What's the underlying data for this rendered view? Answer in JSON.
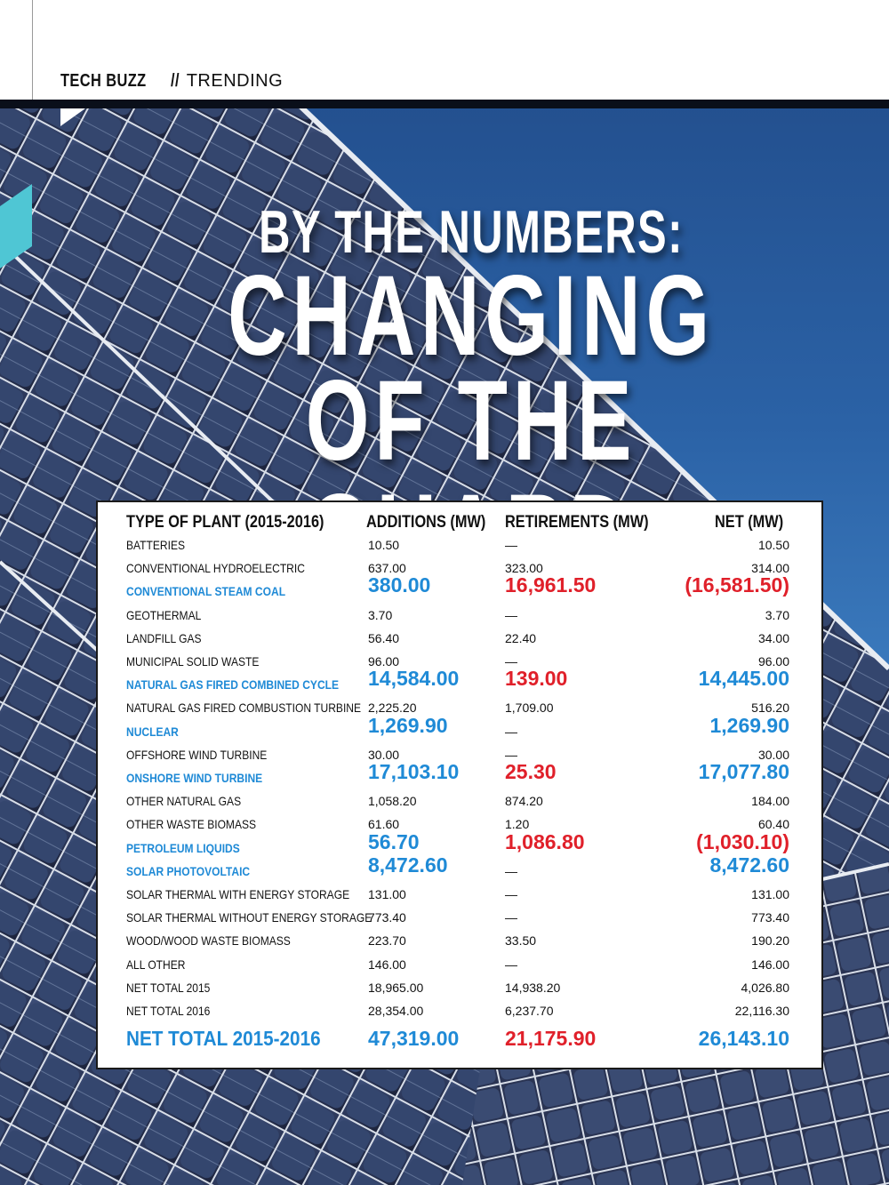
{
  "header": {
    "section": "TECH BUZZ",
    "separator": "//",
    "subsection": "TRENDING"
  },
  "title": {
    "line1": "BY THE NUMBERS:",
    "line2": "CHANGING",
    "line3": "OF THE GUARD"
  },
  "table": {
    "headers": {
      "type": "TYPE OF PLANT (2015-2016)",
      "additions": "ADDITIONS (MW)",
      "retirements": "RETIREMENTS (MW)",
      "net": "NET (MW)"
    },
    "rows": [
      {
        "type": "BATTERIES",
        "additions": "10.50",
        "retirements": "—",
        "net": "10.50",
        "highlight": false
      },
      {
        "type": "CONVENTIONAL HYDROELECTRIC",
        "additions": "637.00",
        "retirements": "323.00",
        "net": "314.00",
        "highlight": false
      },
      {
        "type": "CONVENTIONAL STEAM COAL",
        "additions": "380.00",
        "retirements": "16,961.50",
        "net": "(16,581.50)",
        "highlight": true,
        "net_color": "red"
      },
      {
        "type": "GEOTHERMAL",
        "additions": "3.70",
        "retirements": "—",
        "net": "3.70",
        "highlight": false
      },
      {
        "type": "LANDFILL GAS",
        "additions": "56.40",
        "retirements": "22.40",
        "net": "34.00",
        "highlight": false
      },
      {
        "type": "MUNICIPAL SOLID WASTE",
        "additions": "96.00",
        "retirements": "—",
        "net": "96.00",
        "highlight": false
      },
      {
        "type": "NATURAL GAS FIRED COMBINED CYCLE",
        "additions": "14,584.00",
        "retirements": "139.00",
        "net": "14,445.00",
        "highlight": true,
        "net_color": "blue"
      },
      {
        "type": "NATURAL GAS FIRED COMBUSTION TURBINE",
        "additions": "2,225.20",
        "retirements": "1,709.00",
        "net": "516.20",
        "highlight": false
      },
      {
        "type": "NUCLEAR",
        "additions": "1,269.90",
        "retirements": "—",
        "net": "1,269.90",
        "highlight": true,
        "net_color": "blue"
      },
      {
        "type": "OFFSHORE WIND TURBINE",
        "additions": "30.00",
        "retirements": "—",
        "net": "30.00",
        "highlight": false
      },
      {
        "type": "ONSHORE WIND TURBINE",
        "additions": "17,103.10",
        "retirements": "25.30",
        "net": "17,077.80",
        "highlight": true,
        "net_color": "blue"
      },
      {
        "type": "OTHER NATURAL GAS",
        "additions": "1,058.20",
        "retirements": "874.20",
        "net": "184.00",
        "highlight": false
      },
      {
        "type": "OTHER WASTE BIOMASS",
        "additions": "61.60",
        "retirements": "1.20",
        "net": "60.40",
        "highlight": false
      },
      {
        "type": "PETROLEUM LIQUIDS",
        "additions": "56.70",
        "retirements": "1,086.80",
        "net": "(1,030.10)",
        "highlight": true,
        "net_color": "red"
      },
      {
        "type": "SOLAR PHOTOVOLTAIC",
        "additions": "8,472.60",
        "retirements": "—",
        "net": "8,472.60",
        "highlight": true,
        "net_color": "blue"
      },
      {
        "type": "SOLAR THERMAL WITH ENERGY STORAGE",
        "additions": "131.00",
        "retirements": "—",
        "net": "131.00",
        "highlight": false
      },
      {
        "type": "SOLAR THERMAL WITHOUT ENERGY STORAGE",
        "additions": "773.40",
        "retirements": "—",
        "net": "773.40",
        "highlight": false
      },
      {
        "type": "WOOD/WOOD WASTE BIOMASS",
        "additions": "223.70",
        "retirements": "33.50",
        "net": "190.20",
        "highlight": false
      },
      {
        "type": "ALL OTHER",
        "additions": "146.00",
        "retirements": "—",
        "net": "146.00",
        "highlight": false
      },
      {
        "type": "NET TOTAL 2015",
        "additions": "18,965.00",
        "retirements": "14,938.20",
        "net": "4,026.80",
        "highlight": false
      },
      {
        "type": "NET TOTAL 2016",
        "additions": "28,354.00",
        "retirements": "6,237.70",
        "net": "22,116.30",
        "highlight": false
      }
    ],
    "total": {
      "type": "NET TOTAL 2015-2016",
      "additions": "47,319.00",
      "retirements": "21,175.90",
      "net": "26,143.10"
    }
  },
  "colors": {
    "highlight_blue": "#1f8ad6",
    "highlight_red": "#e0202a",
    "sky": "#2b62a6"
  }
}
